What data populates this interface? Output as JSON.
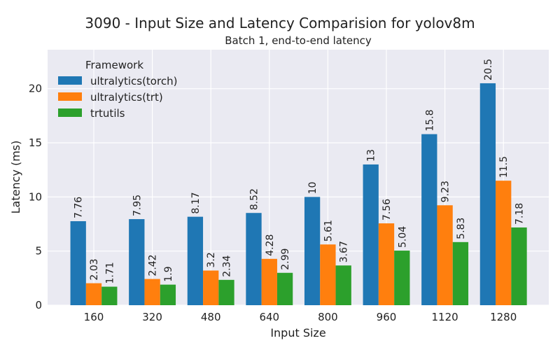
{
  "chart_data": {
    "type": "bar",
    "title": "3090 - Input Size and Latency Comparision for yolov8m",
    "subtitle": "Batch 1, end-to-end latency",
    "xlabel": "Input Size",
    "ylabel": "Latency (ms)",
    "categories": [
      "160",
      "320",
      "480",
      "640",
      "800",
      "960",
      "1120",
      "1280"
    ],
    "ylim": [
      0,
      23.6
    ],
    "yticks": [
      0,
      5,
      10,
      15,
      20
    ],
    "grid": true,
    "legend": {
      "title": "Framework",
      "placement": "top-left"
    },
    "series": [
      {
        "name": "ultralytics(torch)",
        "color": "#1f77b4",
        "values": [
          7.76,
          7.95,
          8.17,
          8.52,
          10,
          13,
          15.8,
          20.5
        ]
      },
      {
        "name": "ultralytics(trt)",
        "color": "#ff7f0e",
        "values": [
          2.03,
          2.42,
          3.2,
          4.28,
          5.61,
          7.56,
          9.23,
          11.5
        ]
      },
      {
        "name": "trtutils",
        "color": "#2ca02c",
        "values": [
          1.71,
          1.9,
          2.34,
          2.99,
          3.67,
          5.04,
          5.83,
          7.18
        ]
      }
    ]
  }
}
